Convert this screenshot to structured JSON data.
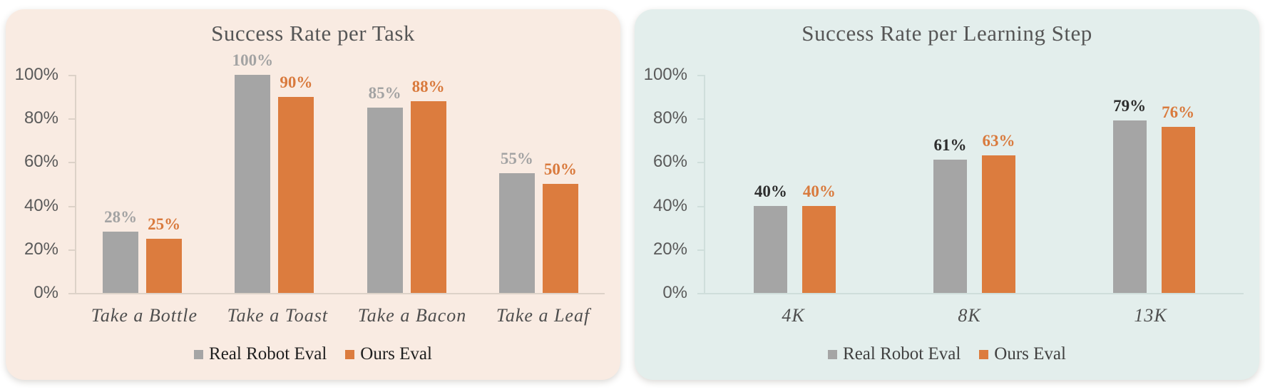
{
  "chart_data": [
    {
      "type": "bar",
      "title": "Success Rate per Task",
      "categories": [
        "Take a Bottle",
        "Take a Toast",
        "Take a Bacon",
        "Take a Leaf"
      ],
      "series": [
        {
          "name": "Real Robot Eval",
          "values": [
            28,
            100,
            85,
            55
          ],
          "color": "#a5a5a5",
          "label_color": "#a3a3a3"
        },
        {
          "name": "Ours Eval",
          "values": [
            25,
            90,
            88,
            50
          ],
          "color": "#dc7c3e",
          "label_color": "#d97a3d"
        }
      ],
      "value_suffix": "%",
      "ylim": [
        0,
        100
      ],
      "y_ticks": [
        "0%",
        "20%",
        "40%",
        "60%",
        "80%",
        "100%"
      ],
      "grid": false,
      "legend_position": "bottom",
      "panel_bg": "#f9ebe2",
      "axis_color": "#ddd2c8",
      "legend_text_color": "#1f1f1f"
    },
    {
      "type": "bar",
      "title": "Success Rate per Learning Step",
      "categories": [
        "4K",
        "8K",
        "13K"
      ],
      "series": [
        {
          "name": "Real Robot Eval",
          "values": [
            40,
            61,
            79
          ],
          "color": "#a5a5a5",
          "label_color": "#2d2d2d"
        },
        {
          "name": "Ours Eval",
          "values": [
            40,
            63,
            76
          ],
          "color": "#dc7c3e",
          "label_color": "#d97a3d"
        }
      ],
      "value_suffix": "%",
      "ylim": [
        0,
        100
      ],
      "y_ticks": [
        "0%",
        "20%",
        "40%",
        "60%",
        "80%",
        "100%"
      ],
      "grid": false,
      "legend_position": "bottom",
      "panel_bg": "#e3eeec",
      "axis_color": "#cfdedb",
      "legend_text_color": "#414141"
    }
  ]
}
